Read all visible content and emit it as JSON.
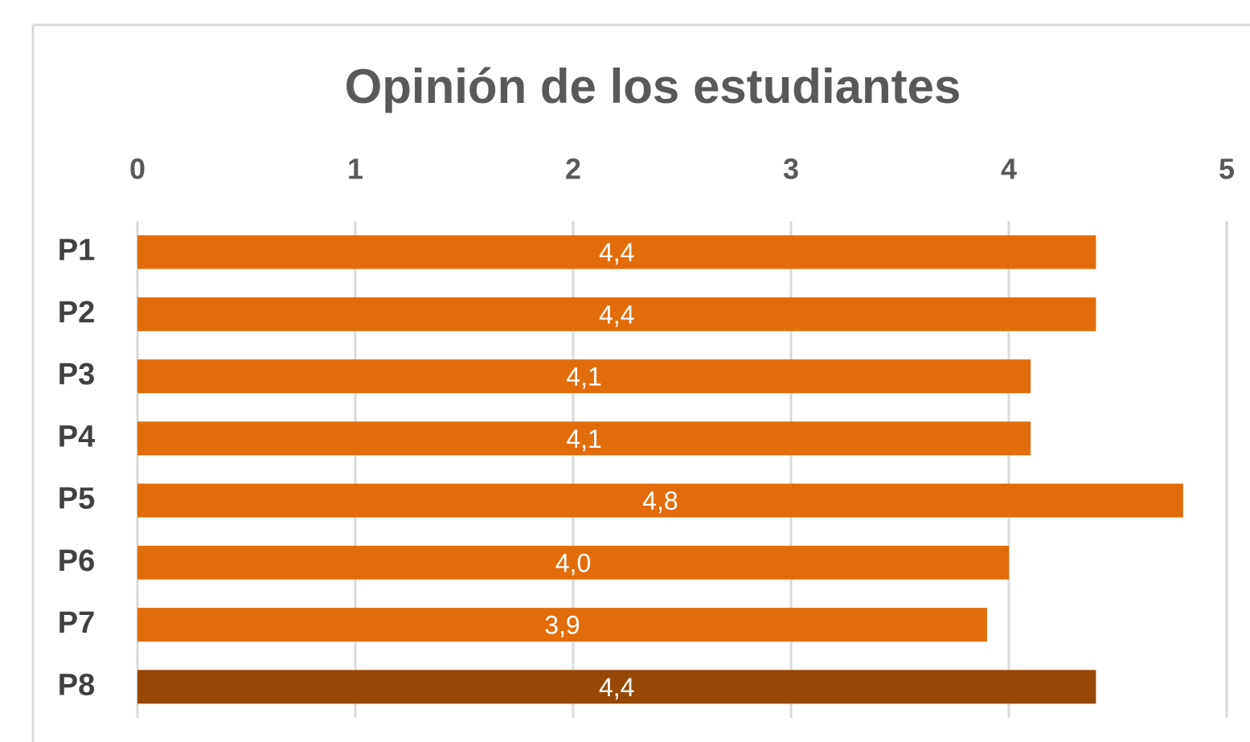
{
  "chart_data": {
    "type": "hbar",
    "title": "Opinión de los estudiantes",
    "categories": [
      "P1",
      "P2",
      "P3",
      "P4",
      "P5",
      "P6",
      "P7",
      "P8"
    ],
    "values": [
      4.4,
      4.4,
      4.1,
      4.1,
      4.8,
      4.0,
      3.9,
      4.4
    ],
    "value_labels": [
      "4,4",
      "4,4",
      "4,1",
      "4,1",
      "4,8",
      "4,0",
      "3,9",
      "4,4"
    ],
    "colors": [
      "#e36c0a",
      "#e36c0a",
      "#e36c0a",
      "#e36c0a",
      "#e36c0a",
      "#e36c0a",
      "#e36c0a",
      "#974806"
    ],
    "xlim": [
      0,
      5
    ],
    "xticks": [
      0,
      1,
      2,
      3,
      4,
      5
    ],
    "grid": true
  }
}
